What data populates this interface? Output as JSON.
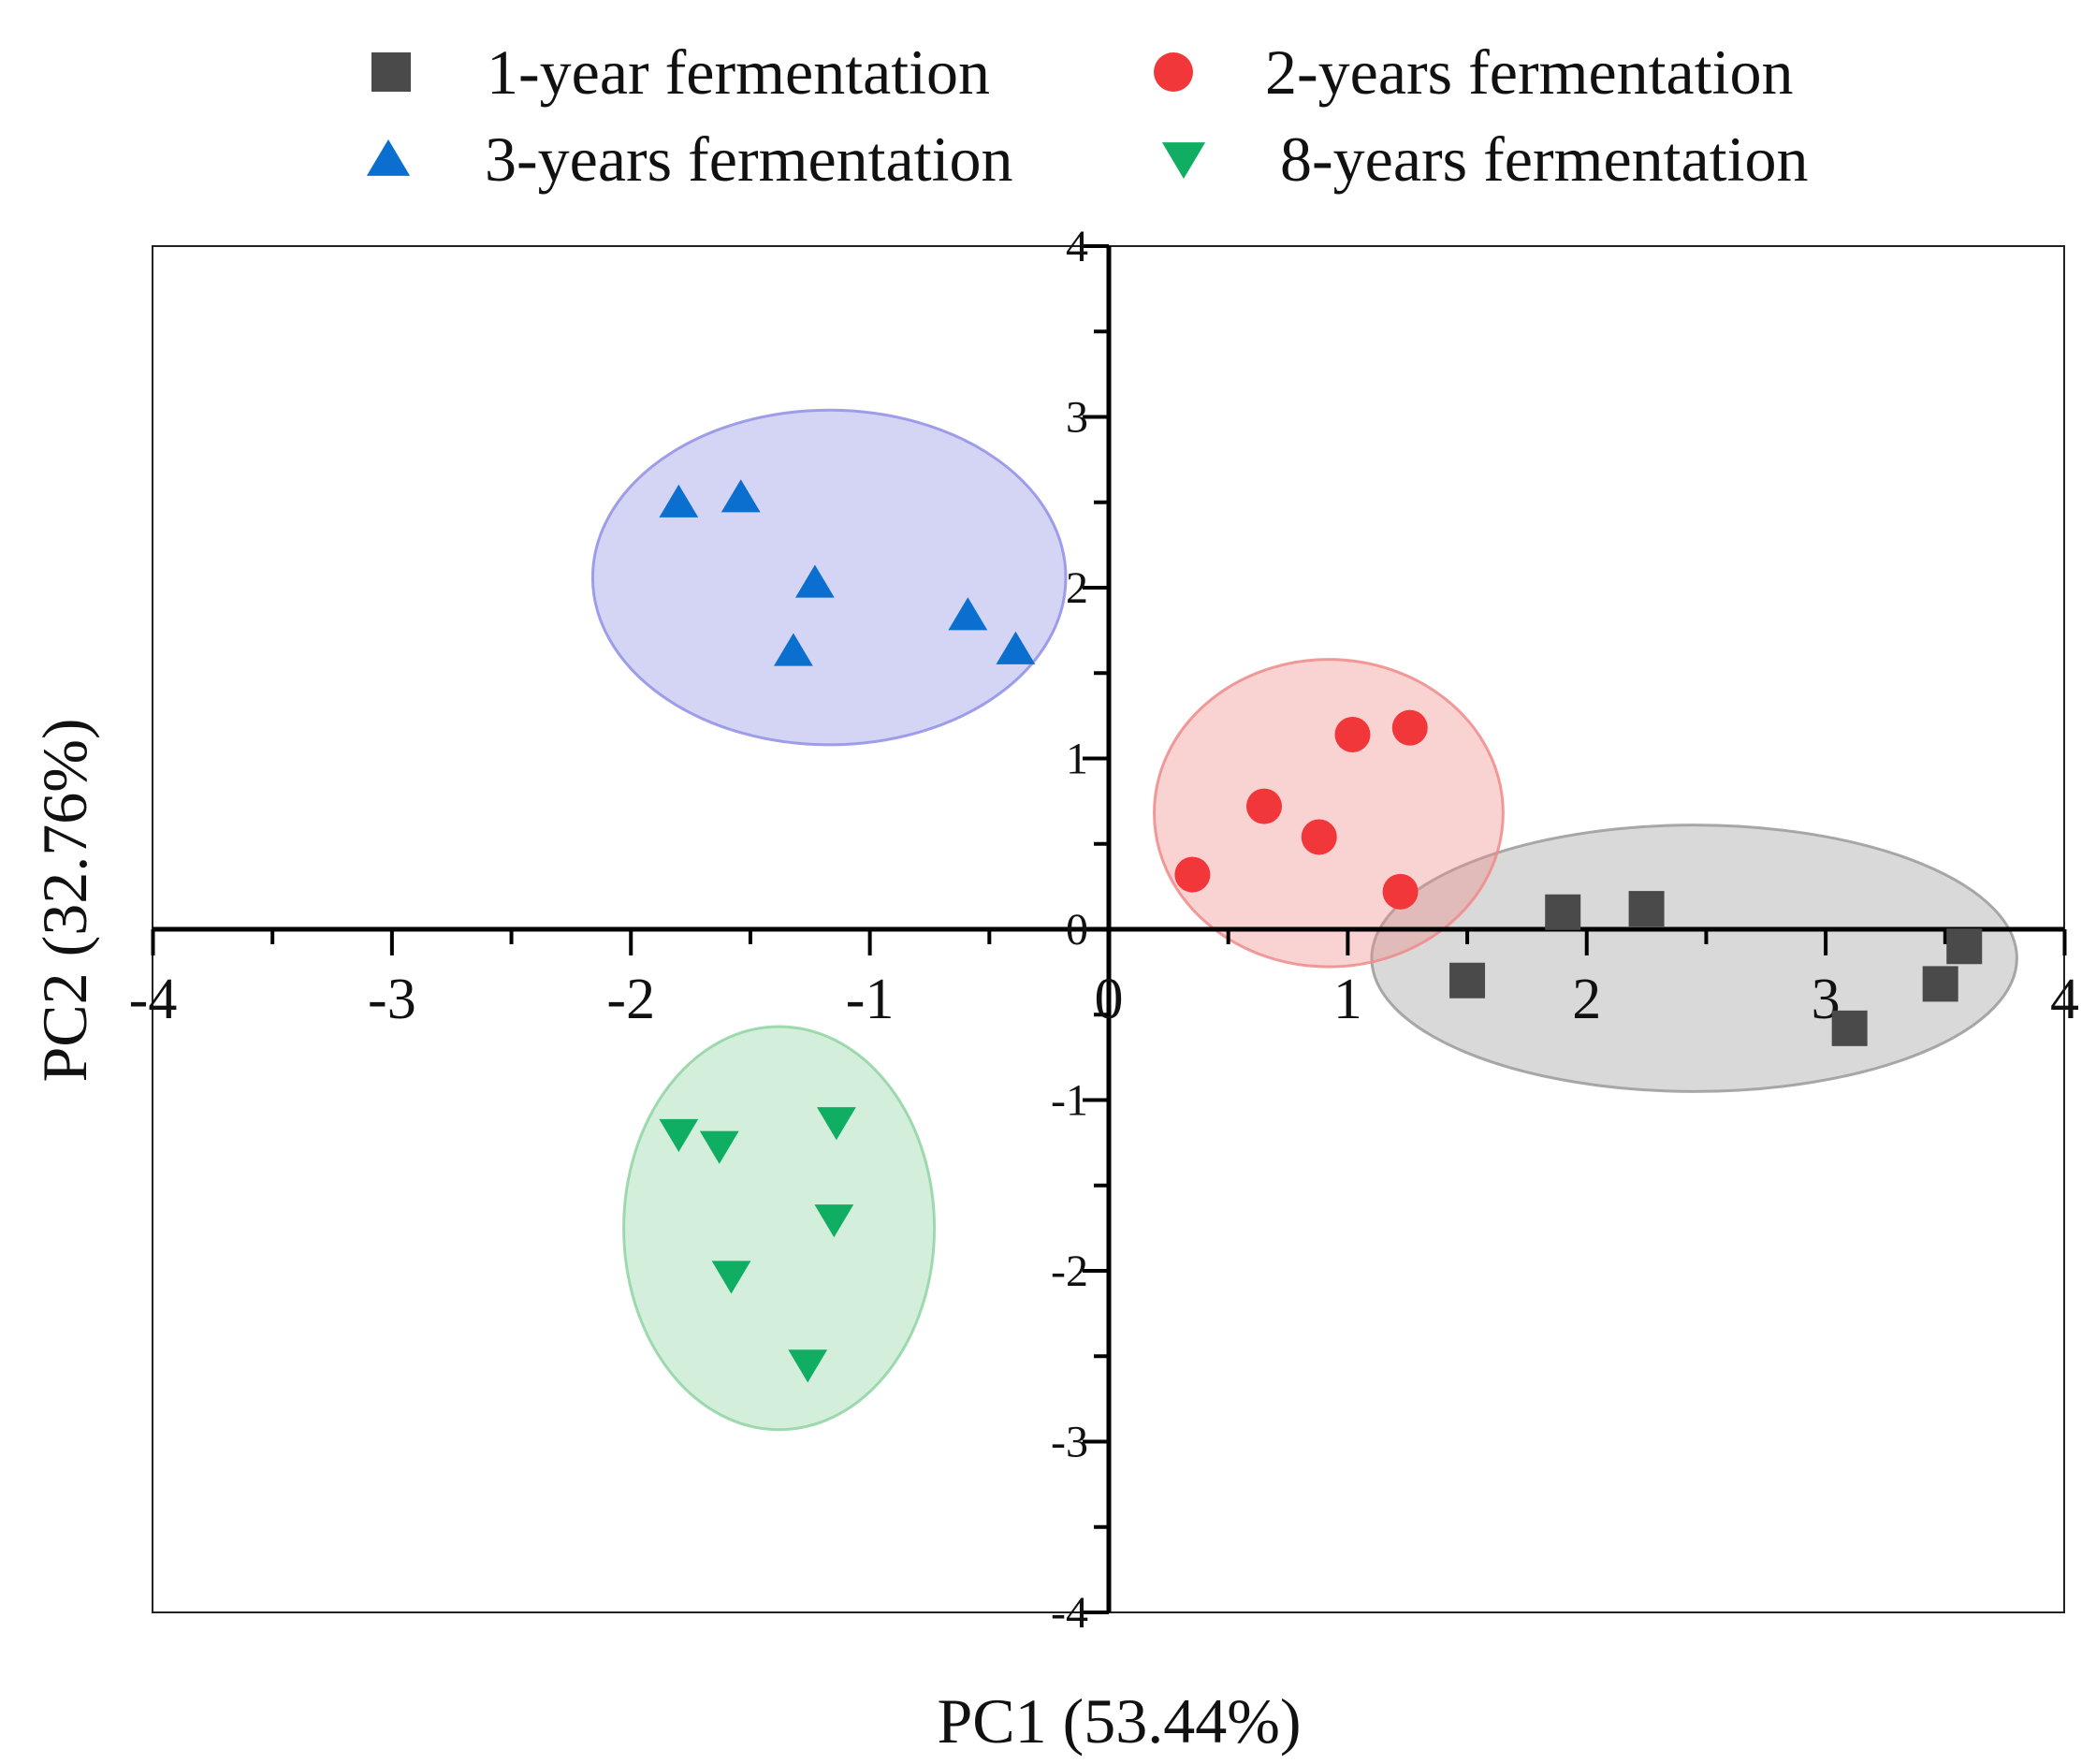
{
  "chart_data": {
    "type": "scatter",
    "title": "",
    "xlabel": "PC1 (53.44%)",
    "ylabel": "PC2 (32.76%)",
    "xlim": [
      -4,
      4
    ],
    "ylim": [
      -4,
      4
    ],
    "xticks": [
      -4,
      -3,
      -2,
      -1,
      0,
      1,
      2,
      3,
      4
    ],
    "xtick_labels": [
      "-4",
      "-3",
      "-2",
      "-1",
      "0",
      "1",
      "2",
      "3",
      "4"
    ],
    "yticks": [
      -4,
      -3,
      -2,
      -1,
      0,
      1,
      2,
      3,
      4
    ],
    "ytick_labels": [
      "-4",
      "-3",
      "-2",
      "-1",
      "0",
      "1",
      "2",
      "3",
      "4"
    ],
    "grid": false,
    "legend_position": "top",
    "series": [
      {
        "name": "1-year fermentation",
        "marker": "square",
        "color": "#4a4a4a",
        "ellipse_color": "#9a9a9a",
        "points": [
          {
            "x": 1.5,
            "y": -0.3
          },
          {
            "x": 1.9,
            "y": 0.1
          },
          {
            "x": 2.25,
            "y": 0.12
          },
          {
            "x": 3.1,
            "y": -0.58
          },
          {
            "x": 3.48,
            "y": -0.32
          },
          {
            "x": 3.58,
            "y": -0.1
          }
        ],
        "ellipse": {
          "cx": 2.45,
          "cy": -0.17,
          "rx": 1.35,
          "ry": 0.78
        }
      },
      {
        "name": "2-years fermentation",
        "marker": "circle",
        "color": "#f2373a",
        "ellipse_color": "#f08a8a",
        "points": [
          {
            "x": 0.35,
            "y": 0.32
          },
          {
            "x": 0.65,
            "y": 0.72
          },
          {
            "x": 0.88,
            "y": 0.54
          },
          {
            "x": 1.02,
            "y": 1.14
          },
          {
            "x": 1.22,
            "y": 0.22
          },
          {
            "x": 1.26,
            "y": 1.18
          }
        ],
        "ellipse": {
          "cx": 0.92,
          "cy": 0.68,
          "rx": 0.73,
          "ry": 0.9
        }
      },
      {
        "name": "3-years fermentation",
        "marker": "triangle-up",
        "color": "#0b6fd0",
        "ellipse_color": "#8f8fe6",
        "points": [
          {
            "x": -1.8,
            "y": 2.5
          },
          {
            "x": -1.54,
            "y": 2.53
          },
          {
            "x": -1.23,
            "y": 2.03
          },
          {
            "x": -1.32,
            "y": 1.63
          },
          {
            "x": -0.59,
            "y": 1.84
          },
          {
            "x": -0.39,
            "y": 1.64
          }
        ],
        "ellipse": {
          "cx": -1.17,
          "cy": 2.06,
          "rx": 0.99,
          "ry": 0.98
        }
      },
      {
        "name": "8-years fermentation",
        "marker": "triangle-down",
        "color": "#0fae62",
        "ellipse_color": "#8fd3a2",
        "points": [
          {
            "x": -1.8,
            "y": -1.2
          },
          {
            "x": -1.63,
            "y": -1.27
          },
          {
            "x": -1.14,
            "y": -1.13
          },
          {
            "x": -1.15,
            "y": -1.7
          },
          {
            "x": -1.58,
            "y": -2.03
          },
          {
            "x": -1.26,
            "y": -2.55
          }
        ],
        "ellipse": {
          "cx": -1.38,
          "cy": -1.75,
          "rx": 0.65,
          "ry": 1.18
        }
      }
    ]
  }
}
